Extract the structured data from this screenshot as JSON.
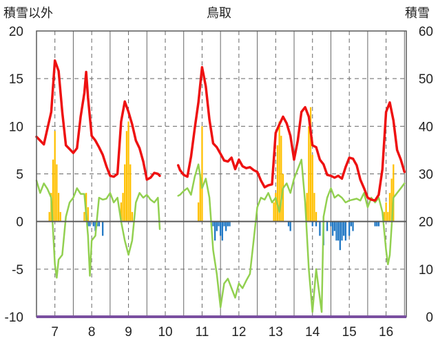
{
  "chart_data": {
    "type": "line",
    "title": "鳥取",
    "left_axis_label": "積雪以外",
    "right_axis_label": "積雪",
    "y_left": {
      "min": -10,
      "max": 20,
      "ticks": [
        20,
        15,
        10,
        5,
        0,
        -5,
        -10
      ]
    },
    "y_right": {
      "min": 0,
      "max": 60,
      "ticks": [
        60,
        50,
        40,
        30,
        20,
        10,
        0
      ]
    },
    "x_labels": [
      "7",
      "8",
      "9",
      "10",
      "11",
      "12",
      "13",
      "14",
      "15",
      "16"
    ],
    "x_range": [
      6.5,
      16.55
    ],
    "colors": {
      "temperature": "#ee1111",
      "humidity_index": "#92d050",
      "precip": "#ffc000",
      "snow_depth_change": "#1f77c4",
      "baseline": "#7a4fa0",
      "axis": "#595959"
    },
    "series": [
      {
        "role": "temperature",
        "axis": "left",
        "segments": [
          [
            [
              6.5,
              8.9
            ],
            [
              6.6,
              8.5
            ],
            [
              6.7,
              8.1
            ],
            [
              6.8,
              9.8
            ],
            [
              6.9,
              11.5
            ],
            [
              7.0,
              16.9
            ],
            [
              7.1,
              15.8
            ],
            [
              7.2,
              11.5
            ],
            [
              7.3,
              8.0
            ],
            [
              7.4,
              7.6
            ],
            [
              7.5,
              7.2
            ],
            [
              7.6,
              7.7
            ],
            [
              7.7,
              11.0
            ],
            [
              7.8,
              13.5
            ],
            [
              7.85,
              15.7
            ],
            [
              7.9,
              13.0
            ],
            [
              8.0,
              9.0
            ],
            [
              8.1,
              8.5
            ],
            [
              8.2,
              7.8
            ],
            [
              8.3,
              7.0
            ],
            [
              8.4,
              5.8
            ],
            [
              8.5,
              4.8
            ],
            [
              8.6,
              4.7
            ],
            [
              8.7,
              5.0
            ],
            [
              8.8,
              10.5
            ],
            [
              8.9,
              12.6
            ],
            [
              9.0,
              11.5
            ],
            [
              9.1,
              10.2
            ],
            [
              9.2,
              8.5
            ],
            [
              9.3,
              7.7
            ],
            [
              9.4,
              6.3
            ],
            [
              9.5,
              4.4
            ],
            [
              9.6,
              4.6
            ],
            [
              9.7,
              5.1
            ],
            [
              9.8,
              5.0
            ],
            [
              9.85,
              4.8
            ]
          ],
          [
            [
              10.35,
              5.9
            ],
            [
              10.4,
              5.4
            ],
            [
              10.5,
              4.9
            ],
            [
              10.6,
              4.7
            ],
            [
              10.7,
              6.8
            ],
            [
              10.8,
              9.8
            ],
            [
              10.9,
              12.5
            ],
            [
              11.0,
              16.2
            ],
            [
              11.1,
              14.2
            ],
            [
              11.2,
              10.7
            ],
            [
              11.3,
              8.2
            ],
            [
              11.4,
              7.8
            ],
            [
              11.5,
              7.1
            ],
            [
              11.6,
              6.4
            ],
            [
              11.7,
              6.3
            ],
            [
              11.8,
              6.7
            ],
            [
              11.9,
              5.5
            ],
            [
              12.0,
              6.5
            ],
            [
              12.1,
              5.8
            ],
            [
              12.2,
              5.6
            ],
            [
              12.3,
              5.7
            ],
            [
              12.4,
              5.4
            ],
            [
              12.5,
              5.2
            ],
            [
              12.6,
              4.3
            ],
            [
              12.7,
              3.6
            ],
            [
              12.8,
              3.8
            ],
            [
              12.9,
              3.9
            ],
            [
              13.0,
              9.3
            ],
            [
              13.1,
              10.2
            ],
            [
              13.2,
              11.0
            ],
            [
              13.3,
              10.3
            ],
            [
              13.4,
              9.0
            ],
            [
              13.5,
              6.5
            ],
            [
              13.6,
              8.5
            ],
            [
              13.7,
              11.5
            ],
            [
              13.8,
              12.0
            ],
            [
              13.9,
              11.0
            ],
            [
              14.0,
              8.0
            ],
            [
              14.1,
              7.8
            ],
            [
              14.2,
              6.5
            ],
            [
              14.3,
              6.0
            ],
            [
              14.4,
              4.9
            ],
            [
              14.5,
              4.8
            ],
            [
              14.6,
              4.6
            ],
            [
              14.7,
              4.8
            ],
            [
              14.8,
              4.5
            ],
            [
              14.9,
              5.7
            ],
            [
              15.0,
              6.7
            ],
            [
              15.1,
              6.6
            ],
            [
              15.2,
              5.9
            ],
            [
              15.3,
              4.4
            ],
            [
              15.4,
              3.5
            ],
            [
              15.5,
              2.5
            ],
            [
              15.6,
              2.3
            ],
            [
              15.7,
              2.2
            ],
            [
              15.8,
              2.8
            ],
            [
              15.9,
              5.5
            ],
            [
              16.0,
              11.5
            ],
            [
              16.1,
              12.5
            ],
            [
              16.2,
              10.6
            ],
            [
              16.3,
              7.5
            ],
            [
              16.4,
              6.5
            ],
            [
              16.5,
              5.2
            ]
          ]
        ]
      },
      {
        "role": "humidity_index",
        "axis": "left",
        "segments": [
          [
            [
              6.5,
              4.3
            ],
            [
              6.6,
              3.0
            ],
            [
              6.7,
              4.0
            ],
            [
              6.8,
              3.4
            ],
            [
              6.9,
              2.5
            ],
            [
              7.0,
              -4.5
            ],
            [
              7.05,
              -5.9
            ],
            [
              7.1,
              -4.0
            ],
            [
              7.2,
              -3.5
            ],
            [
              7.3,
              0.5
            ],
            [
              7.4,
              2.0
            ],
            [
              7.5,
              2.5
            ],
            [
              7.6,
              3.5
            ],
            [
              7.7,
              2.9
            ],
            [
              7.8,
              2.9
            ],
            [
              7.9,
              -1.5
            ],
            [
              7.95,
              -5.7
            ],
            [
              8.0,
              -2.0
            ],
            [
              8.1,
              -1.5
            ],
            [
              8.2,
              2.5
            ],
            [
              8.3,
              2.3
            ],
            [
              8.4,
              2.4
            ],
            [
              8.5,
              3.0
            ],
            [
              8.6,
              2.0
            ],
            [
              8.7,
              2.5
            ],
            [
              8.8,
              0.0
            ],
            [
              8.9,
              -2.0
            ],
            [
              9.0,
              -3.5
            ],
            [
              9.1,
              -2.0
            ],
            [
              9.2,
              2.0
            ],
            [
              9.3,
              3.0
            ],
            [
              9.4,
              2.5
            ],
            [
              9.5,
              2.8
            ],
            [
              9.6,
              2.3
            ],
            [
              9.7,
              2.0
            ],
            [
              9.8,
              2.5
            ],
            [
              9.85,
              -0.8
            ]
          ],
          [
            [
              10.35,
              2.7
            ],
            [
              10.4,
              2.8
            ],
            [
              10.5,
              3.2
            ],
            [
              10.6,
              3.5
            ],
            [
              10.7,
              2.8
            ],
            [
              10.8,
              4.7
            ],
            [
              10.9,
              6.0
            ],
            [
              11.0,
              3.5
            ],
            [
              11.1,
              4.5
            ],
            [
              11.2,
              2.5
            ],
            [
              11.3,
              -3.0
            ],
            [
              11.4,
              -5.5
            ],
            [
              11.5,
              -9.0
            ],
            [
              11.6,
              -6.5
            ],
            [
              11.7,
              -6.0
            ],
            [
              11.8,
              -7.0
            ],
            [
              11.9,
              -8.0
            ],
            [
              12.0,
              -6.5
            ],
            [
              12.1,
              -7.0
            ],
            [
              12.2,
              -6.2
            ],
            [
              12.3,
              -5.5
            ],
            [
              12.4,
              -2.0
            ],
            [
              12.5,
              1.5
            ],
            [
              12.6,
              2.5
            ],
            [
              12.7,
              2.3
            ],
            [
              12.8,
              3.0
            ],
            [
              12.9,
              2.0
            ],
            [
              13.0,
              2.5
            ],
            [
              13.1,
              1.0
            ],
            [
              13.2,
              3.5
            ],
            [
              13.3,
              4.0
            ],
            [
              13.4,
              3.0
            ],
            [
              13.5,
              4.5
            ],
            [
              13.6,
              5.5
            ],
            [
              13.7,
              6.5
            ],
            [
              13.8,
              2.0
            ],
            [
              13.9,
              -5.0
            ],
            [
              14.0,
              -9.5
            ],
            [
              14.1,
              -5.0
            ],
            [
              14.2,
              -8.0
            ],
            [
              14.25,
              -9.5
            ],
            [
              14.3,
              0.5
            ],
            [
              14.4,
              2.5
            ],
            [
              14.5,
              3.5
            ],
            [
              14.6,
              2.5
            ],
            [
              14.7,
              2.8
            ],
            [
              14.8,
              2.5
            ],
            [
              14.9,
              2.0
            ],
            [
              15.0,
              2.2
            ],
            [
              15.1,
              2.3
            ],
            [
              15.2,
              2.4
            ],
            [
              15.3,
              2.2
            ],
            [
              15.4,
              3.0
            ],
            [
              15.5,
              1.5
            ],
            [
              15.6,
              2.5
            ],
            [
              15.7,
              2.0
            ],
            [
              15.8,
              2.5
            ],
            [
              15.9,
              1.0
            ],
            [
              16.0,
              -3.0
            ],
            [
              16.05,
              -4.5
            ],
            [
              16.1,
              -3.5
            ],
            [
              16.2,
              2.5
            ],
            [
              16.3,
              3.0
            ],
            [
              16.4,
              3.5
            ],
            [
              16.5,
              4.0
            ]
          ]
        ]
      }
    ],
    "bars": [
      {
        "role": "precip",
        "axis": "left",
        "values": [
          [
            6.85,
            1.0
          ],
          [
            6.9,
            3.0
          ],
          [
            6.95,
            6.5
          ],
          [
            7.0,
            9.5
          ],
          [
            7.05,
            6.0
          ],
          [
            7.1,
            3.0
          ],
          [
            7.15,
            1.0
          ],
          [
            7.8,
            1.0
          ],
          [
            7.85,
            3.0
          ],
          [
            7.9,
            1.5
          ],
          [
            8.8,
            2.0
          ],
          [
            8.85,
            3.0
          ],
          [
            8.9,
            6.0
          ],
          [
            8.95,
            9.5
          ],
          [
            9.0,
            10.5
          ],
          [
            9.05,
            6.0
          ],
          [
            9.1,
            1.0
          ],
          [
            10.9,
            2.0
          ],
          [
            10.95,
            5.0
          ],
          [
            11.0,
            10.0
          ],
          [
            12.95,
            2.0
          ],
          [
            13.0,
            3.0
          ],
          [
            13.05,
            8.0
          ],
          [
            13.1,
            10.5
          ],
          [
            13.15,
            9.0
          ],
          [
            13.2,
            5.0
          ],
          [
            13.85,
            3.0
          ],
          [
            13.9,
            10.0
          ],
          [
            13.95,
            12.0
          ],
          [
            14.0,
            7.0
          ],
          [
            14.05,
            3.0
          ],
          [
            14.1,
            1.0
          ],
          [
            15.95,
            1.0
          ],
          [
            16.0,
            2.0
          ],
          [
            16.05,
            1.0
          ],
          [
            16.1,
            3.0
          ],
          [
            16.15,
            4.5
          ],
          [
            16.2,
            6.0
          ]
        ]
      },
      {
        "role": "snow_depth_change",
        "axis": "left",
        "values": [
          [
            7.9,
            -0.5
          ],
          [
            7.95,
            -0.5
          ],
          [
            8.05,
            -0.5
          ],
          [
            8.1,
            -1.0
          ],
          [
            8.15,
            -0.5
          ],
          [
            8.2,
            -0.5
          ],
          [
            8.3,
            -1.5
          ],
          [
            11.3,
            -0.5
          ],
          [
            11.35,
            -2.0
          ],
          [
            11.4,
            -1.0
          ],
          [
            11.45,
            -0.5
          ],
          [
            11.5,
            -1.5
          ],
          [
            11.55,
            -2.0
          ],
          [
            11.6,
            -0.5
          ],
          [
            11.65,
            -1.0
          ],
          [
            11.7,
            -0.5
          ],
          [
            11.75,
            -0.5
          ],
          [
            13.35,
            -0.5
          ],
          [
            13.4,
            -1.0
          ],
          [
            14.0,
            -0.5
          ],
          [
            14.1,
            -0.5
          ],
          [
            14.2,
            -1.5
          ],
          [
            14.3,
            -2.5
          ],
          [
            14.4,
            -1.0
          ],
          [
            14.5,
            -0.5
          ],
          [
            14.55,
            -1.5
          ],
          [
            14.6,
            -1.0
          ],
          [
            14.65,
            -2.0
          ],
          [
            14.7,
            -2.0
          ],
          [
            14.75,
            -3.0
          ],
          [
            14.8,
            -2.0
          ],
          [
            14.85,
            -1.5
          ],
          [
            14.9,
            -2.0
          ],
          [
            15.0,
            -1.5
          ],
          [
            15.05,
            -0.5
          ],
          [
            15.1,
            -1.0
          ],
          [
            15.7,
            -0.5
          ],
          [
            15.75,
            -0.5
          ],
          [
            15.8,
            -0.5
          ]
        ]
      }
    ]
  }
}
